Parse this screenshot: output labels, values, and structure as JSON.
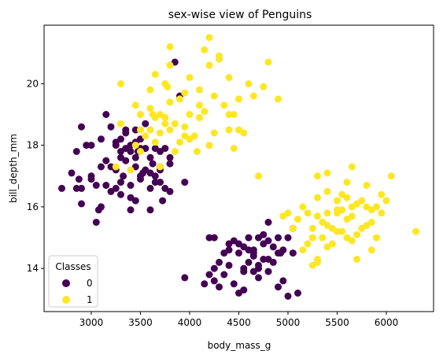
{
  "chart_data": {
    "type": "scatter",
    "title": "sex-wise view of Penguins",
    "xlabel": "body_mass_g",
    "ylabel": "bill_depth_mm",
    "xlim": [
      2520,
      6480
    ],
    "ylim": [
      12.6,
      21.9
    ],
    "xticks": [
      3000,
      3500,
      4000,
      4500,
      5000,
      5500,
      6000
    ],
    "yticks": [
      14,
      16,
      18,
      20
    ],
    "xtick_labels": [
      "3000",
      "3500",
      "4000",
      "4500",
      "5000",
      "5500",
      "6000"
    ],
    "ytick_labels": [
      "14",
      "16",
      "18",
      "20"
    ],
    "grid": false,
    "legend": {
      "title": "Classes",
      "placement": "lower-left"
    },
    "series": [
      {
        "name": "0",
        "color": "#440154",
        "points": [
          [
            2700,
            16.6
          ],
          [
            2800,
            17.1
          ],
          [
            2850,
            16.6
          ],
          [
            2875,
            16.9
          ],
          [
            2900,
            16.6
          ],
          [
            2900,
            16.1
          ],
          [
            2850,
            17.8
          ],
          [
            2900,
            18.6
          ],
          [
            3000,
            16.9
          ],
          [
            3000,
            17.0
          ],
          [
            3050,
            16.7
          ],
          [
            3050,
            15.5
          ],
          [
            3075,
            15.9
          ],
          [
            3100,
            16.0
          ],
          [
            3100,
            17.3
          ],
          [
            3150,
            17.5
          ],
          [
            3150,
            16.7
          ],
          [
            3200,
            16.5
          ],
          [
            3200,
            17.3
          ],
          [
            3250,
            17.2
          ],
          [
            3250,
            18.0
          ],
          [
            3250,
            18.1
          ],
          [
            3250,
            16.6
          ],
          [
            3300,
            16.4
          ],
          [
            3300,
            17.8
          ],
          [
            3300,
            18.2
          ],
          [
            3300,
            16.8
          ],
          [
            3325,
            17.0
          ],
          [
            3350,
            17.5
          ],
          [
            3350,
            18.4
          ],
          [
            3350,
            17.9
          ],
          [
            3400,
            17.8
          ],
          [
            3400,
            16.7
          ],
          [
            3400,
            16.3
          ],
          [
            3400,
            15.9
          ],
          [
            3450,
            16.2
          ],
          [
            3450,
            17.6
          ],
          [
            3450,
            18.1
          ],
          [
            3450,
            17.3
          ],
          [
            3475,
            17.8
          ],
          [
            3500,
            17.9
          ],
          [
            3500,
            16.9
          ],
          [
            3500,
            18.2
          ],
          [
            3500,
            17.0
          ],
          [
            3525,
            17.1
          ],
          [
            3550,
            17.9
          ],
          [
            3550,
            17.2
          ],
          [
            3600,
            17.1
          ],
          [
            3600,
            16.6
          ],
          [
            3600,
            15.9
          ],
          [
            3625,
            17.4
          ],
          [
            3650,
            17.9
          ],
          [
            3650,
            16.8
          ],
          [
            3650,
            17.0
          ],
          [
            3700,
            17.3
          ],
          [
            3700,
            17.8
          ],
          [
            3700,
            16.8
          ],
          [
            3725,
            16.2
          ],
          [
            3750,
            17.9
          ],
          [
            3750,
            16.6
          ],
          [
            3800,
            16.5
          ],
          [
            3800,
            17.4
          ],
          [
            3200,
            18.6
          ],
          [
            3350,
            18.5
          ],
          [
            3450,
            18.5
          ],
          [
            3950,
            16.8
          ],
          [
            3850,
            20.7
          ],
          [
            3900,
            19.6
          ],
          [
            3550,
            18.7
          ],
          [
            3000,
            18.0
          ],
          [
            3100,
            18.2
          ],
          [
            2950,
            18.0
          ],
          [
            3150,
            19.0
          ],
          [
            3400,
            18.0
          ],
          [
            3300,
            17.6
          ],
          [
            3600,
            17.6
          ],
          [
            3700,
            17.2
          ],
          [
            3800,
            17.6
          ],
          [
            3950,
            13.7
          ],
          [
            4150,
            13.5
          ],
          [
            4250,
            14.0
          ],
          [
            4300,
            14.2
          ],
          [
            4350,
            13.8
          ],
          [
            4400,
            14.8
          ],
          [
            4450,
            13.5
          ],
          [
            4500,
            13.2
          ],
          [
            4550,
            14.0
          ],
          [
            4550,
            13.9
          ],
          [
            4600,
            14.2
          ],
          [
            4650,
            14.4
          ],
          [
            4650,
            14.5
          ],
          [
            4700,
            14.0
          ],
          [
            4700,
            13.7
          ],
          [
            4750,
            14.3
          ],
          [
            4800,
            13.9
          ],
          [
            4850,
            14.7
          ],
          [
            4900,
            13.4
          ],
          [
            4925,
            14.5
          ],
          [
            4950,
            14.6
          ],
          [
            5000,
            13.1
          ],
          [
            5050,
            14.5
          ],
          [
            5100,
            13.2
          ],
          [
            4200,
            15.0
          ],
          [
            4450,
            14.9
          ],
          [
            4500,
            14.8
          ],
          [
            4600,
            15.0
          ],
          [
            4700,
            15.0
          ],
          [
            4800,
            15.5
          ],
          [
            4850,
            14.2
          ],
          [
            4900,
            15.0
          ],
          [
            5000,
            15.0
          ],
          [
            4750,
            14.8
          ],
          [
            4600,
            14.6
          ],
          [
            4400,
            14.1
          ],
          [
            4300,
            13.4
          ],
          [
            4250,
            13.6
          ],
          [
            4350,
            14.5
          ],
          [
            4500,
            14.5
          ],
          [
            4650,
            13.9
          ],
          [
            4800,
            14.3
          ],
          [
            4550,
            14.7
          ],
          [
            4400,
            14.6
          ],
          [
            4900,
            14.5
          ],
          [
            5050,
            15.3
          ],
          [
            4200,
            13.8
          ],
          [
            4250,
            15.0
          ],
          [
            4700,
            14.1
          ],
          [
            4800,
            14.9
          ],
          [
            4950,
            13.6
          ],
          [
            4550,
            13.3
          ],
          [
            4650,
            14.6
          ],
          [
            4750,
            15.1
          ]
        ]
      },
      {
        "name": "1",
        "color": "#fde725",
        "points": [
          [
            3250,
            17.3
          ],
          [
            3300,
            18.7
          ],
          [
            3400,
            17.2
          ],
          [
            3450,
            18.0
          ],
          [
            3500,
            17.8
          ],
          [
            3500,
            19.0
          ],
          [
            3550,
            18.3
          ],
          [
            3600,
            18.5
          ],
          [
            3600,
            19.2
          ],
          [
            3625,
            19.0
          ],
          [
            3650,
            18.1
          ],
          [
            3650,
            20.3
          ],
          [
            3700,
            18.4
          ],
          [
            3700,
            19.0
          ],
          [
            3700,
            17.3
          ],
          [
            3750,
            18.9
          ],
          [
            3750,
            20.0
          ],
          [
            3775,
            19.9
          ],
          [
            3800,
            18.5
          ],
          [
            3800,
            19.4
          ],
          [
            3800,
            20.6
          ],
          [
            3800,
            21.2
          ],
          [
            3850,
            17.8
          ],
          [
            3850,
            18.7
          ],
          [
            3900,
            18.1
          ],
          [
            3900,
            19.5
          ],
          [
            3950,
            18.6
          ],
          [
            3950,
            19.7
          ],
          [
            4000,
            19.0
          ],
          [
            4000,
            18.2
          ],
          [
            4050,
            18.3
          ],
          [
            4075,
            17.8
          ],
          [
            4100,
            19.8
          ],
          [
            4150,
            21.1
          ],
          [
            4150,
            19.1
          ],
          [
            4200,
            20.6
          ],
          [
            4200,
            21.5
          ],
          [
            4250,
            18.4
          ],
          [
            4300,
            20.9
          ],
          [
            4350,
            19.3
          ],
          [
            4400,
            20.2
          ],
          [
            4450,
            19.0
          ],
          [
            4450,
            17.9
          ],
          [
            4500,
            18.5
          ],
          [
            4550,
            18.4
          ],
          [
            4600,
            20.0
          ],
          [
            4650,
            19.6
          ],
          [
            4700,
            17.0
          ],
          [
            4750,
            19.9
          ],
          [
            4800,
            20.7
          ],
          [
            4900,
            19.5
          ],
          [
            4300,
            20.8
          ],
          [
            4200,
            18.0
          ],
          [
            4400,
            19.0
          ],
          [
            4100,
            19.3
          ],
          [
            3900,
            19.5
          ],
          [
            3600,
            19.8
          ],
          [
            3500,
            18.5
          ],
          [
            3450,
            19.3
          ],
          [
            3300,
            20.0
          ],
          [
            4000,
            20.2
          ],
          [
            4100,
            18.9
          ],
          [
            4250,
            19.6
          ],
          [
            3950,
            18.3
          ],
          [
            3750,
            18.7
          ],
          [
            3650,
            18.9
          ],
          [
            4500,
            19.5
          ],
          [
            4400,
            18.5
          ],
          [
            5200,
            15.8
          ],
          [
            5250,
            15.0
          ],
          [
            5300,
            15.7
          ],
          [
            5300,
            16.3
          ],
          [
            5350,
            15.0
          ],
          [
            5400,
            15.8
          ],
          [
            5400,
            17.1
          ],
          [
            5450,
            14.8
          ],
          [
            5500,
            15.2
          ],
          [
            5500,
            15.8
          ],
          [
            5550,
            16.4
          ],
          [
            5550,
            15.9
          ],
          [
            5600,
            15.6
          ],
          [
            5600,
            16.3
          ],
          [
            5650,
            16.0
          ],
          [
            5650,
            17.3
          ],
          [
            5700,
            15.1
          ],
          [
            5700,
            14.3
          ],
          [
            5750,
            15.3
          ],
          [
            5800,
            16.0
          ],
          [
            5800,
            16.7
          ],
          [
            5850,
            15.9
          ],
          [
            5850,
            14.6
          ],
          [
            5950,
            15.8
          ],
          [
            6000,
            16.2
          ],
          [
            6050,
            17.0
          ],
          [
            6300,
            15.2
          ],
          [
            5000,
            15.8
          ],
          [
            5100,
            15.6
          ],
          [
            5050,
            15.3
          ],
          [
            5150,
            14.6
          ],
          [
            5200,
            14.8
          ],
          [
            5250,
            14.1
          ],
          [
            5300,
            14.2
          ],
          [
            5350,
            15.5
          ],
          [
            5400,
            14.7
          ],
          [
            5450,
            15.3
          ],
          [
            5500,
            15.9
          ],
          [
            5600,
            15.0
          ],
          [
            5700,
            16.1
          ],
          [
            5850,
            15.5
          ],
          [
            5950,
            16.4
          ],
          [
            5800,
            15.4
          ],
          [
            5900,
            16.0
          ],
          [
            5500,
            16.2
          ],
          [
            5400,
            15.4
          ],
          [
            5300,
            17.0
          ],
          [
            4950,
            15.7
          ],
          [
            5650,
            15.7
          ],
          [
            5550,
            15.2
          ],
          [
            5250,
            15.3
          ],
          [
            5300,
            14.3
          ],
          [
            5600,
            16.8
          ],
          [
            5400,
            16.5
          ],
          [
            5900,
            15.0
          ],
          [
            5750,
            16.2
          ],
          [
            5650,
            14.9
          ],
          [
            5150,
            16.0
          ]
        ]
      }
    ]
  }
}
